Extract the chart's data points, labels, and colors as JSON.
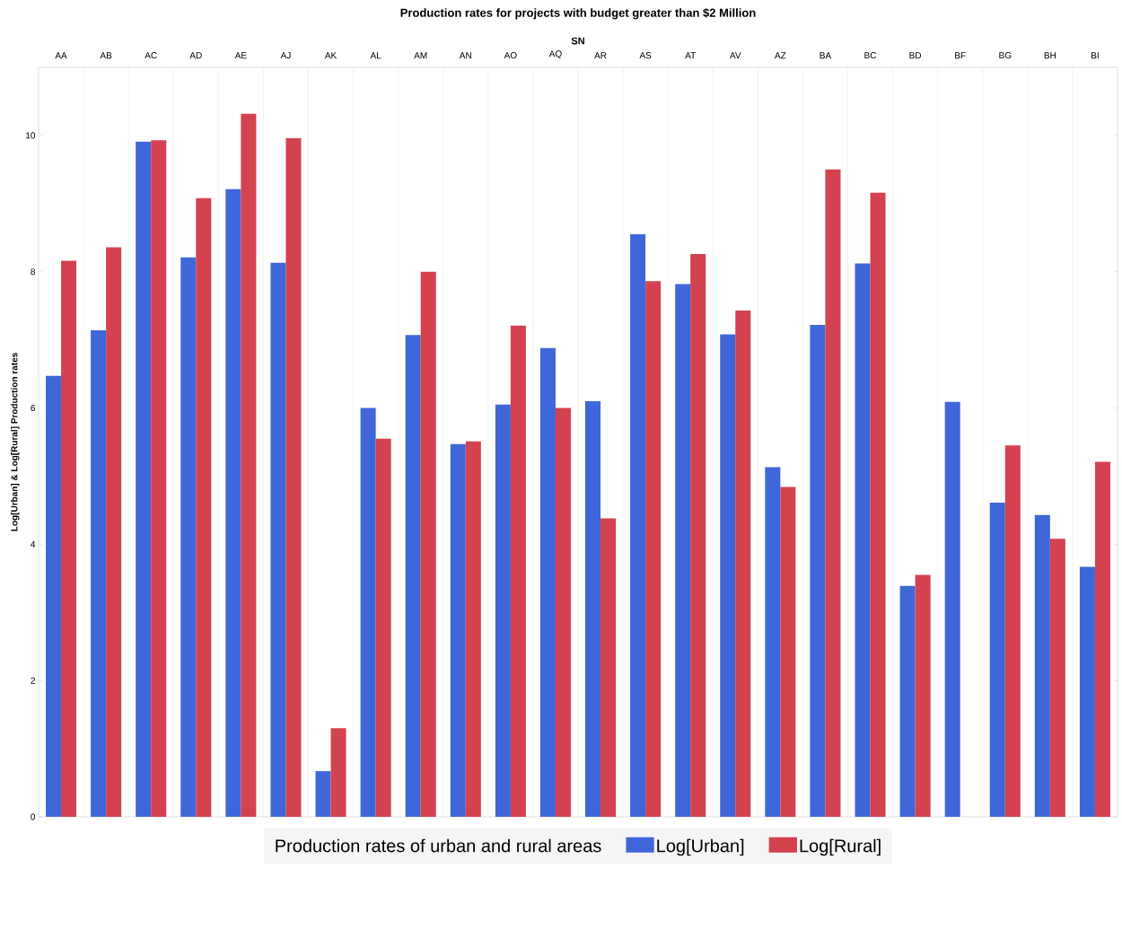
{
  "chart_data": {
    "type": "bar",
    "title": "Production rates for projects with budget greater than $2 Million",
    "xlabel": "SN",
    "ylabel": "Log[Urban] & Log[Rural] Production rates",
    "legend_title": "Production rates of urban and rural areas",
    "categories": [
      "AA",
      "AB",
      "AC",
      "AD",
      "AE",
      "AJ",
      "AK",
      "AL",
      "AM",
      "AN",
      "AO",
      "AQ",
      "AR",
      "AS",
      "AT",
      "AV",
      "AZ",
      "BA",
      "BC",
      "BD",
      "BF",
      "BG",
      "BH",
      "BI"
    ],
    "series": [
      {
        "name": "Log[Urban]",
        "color": "#3f67d9",
        "values": [
          6.47,
          7.14,
          9.91,
          8.21,
          9.21,
          8.13,
          0.67,
          6.0,
          7.07,
          5.47,
          6.05,
          6.88,
          6.1,
          8.55,
          7.82,
          7.08,
          5.13,
          7.22,
          8.12,
          3.39,
          6.09,
          4.61,
          4.43,
          3.67
        ]
      },
      {
        "name": "Log[Rural]",
        "color": "#d4424f",
        "values": [
          8.16,
          8.36,
          9.93,
          9.08,
          10.32,
          9.96,
          1.3,
          5.55,
          8.0,
          5.51,
          7.21,
          6.0,
          4.38,
          7.86,
          8.26,
          7.43,
          4.84,
          9.5,
          9.16,
          3.55,
          null,
          5.45,
          4.08,
          5.21
        ]
      }
    ],
    "ylim": [
      0,
      11
    ],
    "yticks": [
      0,
      2,
      4,
      6,
      8,
      10
    ],
    "grid": "x",
    "legend": "bottom"
  }
}
